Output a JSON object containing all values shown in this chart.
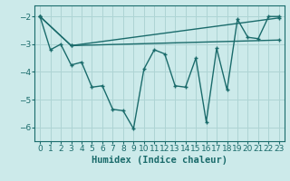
{
  "xlabel": "Humidex (Indice chaleur)",
  "bg_color": "#cceaea",
  "line_color": "#1a6b6b",
  "grid_color": "#aed4d4",
  "x_min": -0.5,
  "x_max": 23.5,
  "y_min": -6.5,
  "y_max": -1.6,
  "yticks": [
    -6,
    -5,
    -4,
    -3,
    -2
  ],
  "xticks": [
    0,
    1,
    2,
    3,
    4,
    5,
    6,
    7,
    8,
    9,
    10,
    11,
    12,
    13,
    14,
    15,
    16,
    17,
    18,
    19,
    20,
    21,
    22,
    23
  ],
  "line1_x": [
    0,
    1,
    2,
    3,
    4,
    5,
    6,
    7,
    8,
    9,
    10,
    11,
    12,
    13,
    14,
    15,
    16,
    17,
    18,
    19,
    20,
    21,
    22,
    23
  ],
  "line1_y": [
    -2.0,
    -3.2,
    -3.0,
    -3.75,
    -3.65,
    -4.55,
    -4.5,
    -5.35,
    -5.4,
    -6.05,
    -3.9,
    -3.2,
    -3.35,
    -4.5,
    -4.55,
    -3.5,
    -5.8,
    -3.15,
    -4.65,
    -2.1,
    -2.75,
    -2.8,
    -2.0,
    -2.0
  ],
  "line2_x": [
    0,
    3,
    23
  ],
  "line2_y": [
    -2.0,
    -3.05,
    -2.05
  ],
  "line3_x": [
    0,
    3,
    23
  ],
  "line3_y": [
    -2.0,
    -3.05,
    -2.85
  ],
  "tick_labelsize": 6.5,
  "xlabel_fontsize": 7.5
}
